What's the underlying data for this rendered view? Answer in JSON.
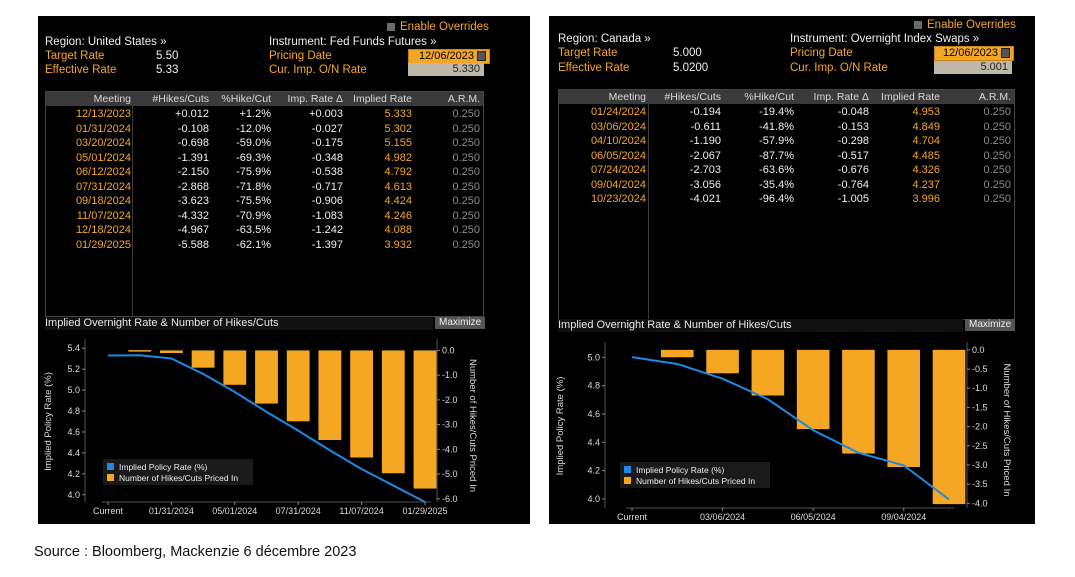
{
  "us": {
    "enable_overrides": "Enable Overrides",
    "region_label": "Region: United States »",
    "instrument_label": "Instrument: Fed Funds Futures »",
    "target_rate_label": "Target Rate",
    "target_rate_value": "5.50",
    "effective_rate_label": "Effective Rate",
    "effective_rate_value": "5.33",
    "pricing_date_label": "Pricing Date",
    "pricing_date_value": "12/06/2023",
    "onr_label": "Cur. Imp. O/N Rate",
    "onr_value": "5.330",
    "columns": [
      "Meeting",
      "#Hikes/Cuts",
      "%Hike/Cut",
      "Imp. Rate Δ",
      "Implied Rate",
      "A.R.M."
    ],
    "rows": [
      [
        "12/13/2023",
        "+0.012",
        "+1.2%",
        "+0.003",
        "5.333",
        "0.250"
      ],
      [
        "01/31/2024",
        "-0.108",
        "-12.0%",
        "-0.027",
        "5.302",
        "0.250"
      ],
      [
        "03/20/2024",
        "-0.698",
        "-59.0%",
        "-0.175",
        "5.155",
        "0.250"
      ],
      [
        "05/01/2024",
        "-1.391",
        "-69.3%",
        "-0.348",
        "4.982",
        "0.250"
      ],
      [
        "06/12/2024",
        "-2.150",
        "-75.9%",
        "-0.538",
        "4.792",
        "0.250"
      ],
      [
        "07/31/2024",
        "-2.868",
        "-71.8%",
        "-0.717",
        "4.613",
        "0.250"
      ],
      [
        "09/18/2024",
        "-3.623",
        "-75.5%",
        "-0.906",
        "4.424",
        "0.250"
      ],
      [
        "11/07/2024",
        "-4.332",
        "-70.9%",
        "-1.083",
        "4.246",
        "0.250"
      ],
      [
        "12/18/2024",
        "-4.967",
        "-63.5%",
        "-1.242",
        "4.088",
        "0.250"
      ],
      [
        "01/29/2025",
        "-5.588",
        "-62.1%",
        "-1.397",
        "3.932",
        "0.250"
      ]
    ],
    "chart_title": "Implied Overnight Rate & Number of Hikes/Cuts",
    "maximize": "Maximize"
  },
  "ca": {
    "enable_overrides": "Enable Overrides",
    "region_label": "Region: Canada »",
    "instrument_label": "Instrument: Overnight Index Swaps »",
    "target_rate_label": "Target Rate",
    "target_rate_value": "5.000",
    "effective_rate_label": "Effective Rate",
    "effective_rate_value": "5.0200",
    "pricing_date_label": "Pricing Date",
    "pricing_date_value": "12/06/2023",
    "onr_label": "Cur. Imp. O/N Rate",
    "onr_value": "5.001",
    "columns": [
      "Meeting",
      "#Hikes/Cuts",
      "%Hike/Cut",
      "Imp. Rate Δ",
      "Implied Rate",
      "A.R.M."
    ],
    "rows": [
      [
        "01/24/2024",
        "-0.194",
        "-19.4%",
        "-0.048",
        "4.953",
        "0.250"
      ],
      [
        "03/06/2024",
        "-0.611",
        "-41.8%",
        "-0.153",
        "4.849",
        "0.250"
      ],
      [
        "04/10/2024",
        "-1.190",
        "-57.9%",
        "-0.298",
        "4.704",
        "0.250"
      ],
      [
        "06/05/2024",
        "-2.067",
        "-87.7%",
        "-0.517",
        "4.485",
        "0.250"
      ],
      [
        "07/24/2024",
        "-2.703",
        "-63.6%",
        "-0.676",
        "4.326",
        "0.250"
      ],
      [
        "09/04/2024",
        "-3.056",
        "-35.4%",
        "-0.764",
        "4.237",
        "0.250"
      ],
      [
        "10/23/2024",
        "-4.021",
        "-96.4%",
        "-1.005",
        "3.996",
        "0.250"
      ]
    ],
    "chart_title": "Implied Overnight Rate & Number of Hikes/Cuts",
    "maximize": "Maximize"
  },
  "colors": {
    "orange": "#f5a623",
    "line_blue": "#1e88e5",
    "panel_bg": "#000000"
  },
  "chart_data": [
    {
      "type": "bar",
      "region": "United States",
      "categories": [
        "Current",
        "12/13/2023",
        "01/31/2024",
        "03/20/2024",
        "05/01/2024",
        "06/12/2024",
        "07/31/2024",
        "09/18/2024",
        "11/07/2024",
        "12/18/2024",
        "01/29/2025"
      ],
      "x_tick_labels": [
        "Current",
        "01/31/2024",
        "05/01/2024",
        "07/31/2024",
        "11/07/2024",
        "01/29/2025"
      ],
      "series": [
        {
          "name": "Implied Policy Rate (%)",
          "kind": "line",
          "axis": "left",
          "values": [
            5.33,
            5.333,
            5.302,
            5.155,
            4.982,
            4.792,
            4.613,
            4.424,
            4.246,
            4.088,
            3.932
          ]
        },
        {
          "name": "Number of Hikes/Cuts Priced In",
          "kind": "bar",
          "axis": "right",
          "values": [
            null,
            0.012,
            -0.108,
            -0.698,
            -1.391,
            -2.15,
            -2.868,
            -3.623,
            -4.332,
            -4.967,
            -5.588
          ]
        }
      ],
      "ylabel": "Implied Policy Rate (%)",
      "y2label": "Number of Hikes/Cuts Priced In",
      "ylim": [
        3.95,
        5.45
      ],
      "yticks": [
        4.0,
        4.2,
        4.4,
        4.6,
        4.8,
        5.0,
        5.2,
        5.4
      ],
      "y2lim": [
        -6.05,
        0.3
      ],
      "y2ticks": [
        0.0,
        -1.0,
        -2.0,
        -3.0,
        -4.0,
        -5.0,
        -6.0
      ],
      "legend": "bottom-left"
    },
    {
      "type": "bar",
      "region": "Canada",
      "categories": [
        "Current",
        "01/24/2024",
        "03/06/2024",
        "04/10/2024",
        "06/05/2024",
        "07/24/2024",
        "09/04/2024",
        "10/23/2024"
      ],
      "x_tick_labels": [
        "Current",
        "03/06/2024",
        "06/05/2024",
        "09/04/2024"
      ],
      "series": [
        {
          "name": "Implied Policy Rate (%)",
          "kind": "line",
          "axis": "left",
          "values": [
            5.001,
            4.953,
            4.849,
            4.704,
            4.485,
            4.326,
            4.237,
            3.996
          ]
        },
        {
          "name": "Number of Hikes/Cuts Priced In",
          "kind": "bar",
          "axis": "right",
          "values": [
            null,
            -0.194,
            -0.611,
            -1.19,
            -2.067,
            -2.703,
            -3.056,
            -4.021
          ]
        }
      ],
      "ylabel": "Implied Policy Rate (%)",
      "y2label": "Number of Hikes/Cuts Priced In",
      "ylim": [
        3.95,
        5.08
      ],
      "yticks": [
        4.0,
        4.2,
        4.4,
        4.6,
        4.8,
        5.0
      ],
      "y2lim": [
        -4.07,
        0.1
      ],
      "y2ticks": [
        0.0,
        -0.5,
        -1.0,
        -1.5,
        -2.0,
        -2.5,
        -3.0,
        -3.5,
        -4.0
      ],
      "legend": "bottom-left"
    }
  ],
  "source": "Source : Bloomberg, Mackenzie 6 décembre 2023"
}
